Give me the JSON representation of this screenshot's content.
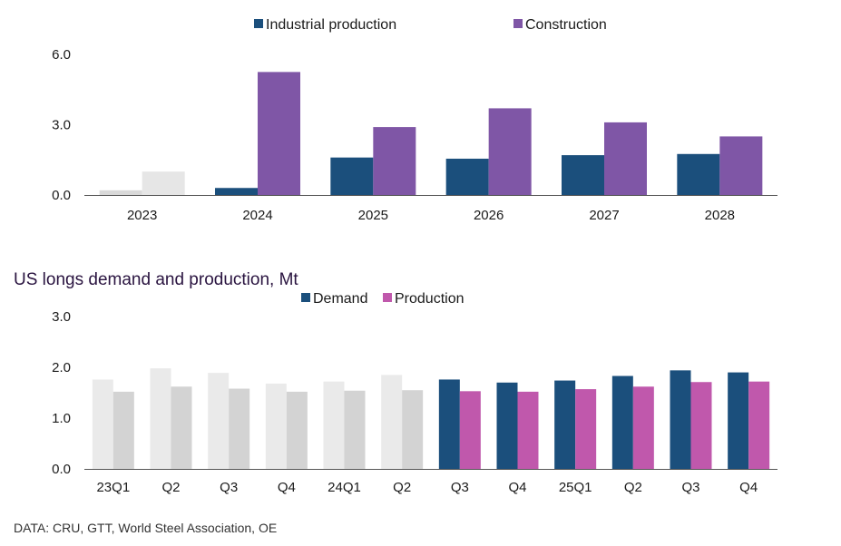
{
  "chart_data": [
    {
      "type": "bar",
      "title": "",
      "categories": [
        "2023",
        "2024",
        "2025",
        "2026",
        "2027",
        "2028"
      ],
      "series": [
        {
          "name": "Industrial production",
          "color": "#1b4f7c",
          "values": [
            0.2,
            0.3,
            1.6,
            1.55,
            1.7,
            1.75
          ]
        },
        {
          "name": "Construction",
          "color": "#7f56a6",
          "values": [
            1.0,
            5.25,
            2.9,
            3.7,
            3.1,
            2.5
          ]
        }
      ],
      "historical_colors": [
        "#d9d9d9",
        "#e6e6e6"
      ],
      "historical_count": 1,
      "yticks": [
        "0.0",
        "3.0",
        "6.0"
      ],
      "ylim": [
        0,
        6
      ],
      "legend": "top"
    },
    {
      "type": "bar",
      "title": "US longs demand and production, Mt",
      "categories": [
        "23Q1",
        "Q2",
        "Q3",
        "Q4",
        "24Q1",
        "Q2",
        "Q3",
        "Q4",
        "25Q1",
        "Q2",
        "Q3",
        "Q4"
      ],
      "series": [
        {
          "name": "Demand",
          "color": "#1b4f7c",
          "values": [
            1.76,
            1.98,
            1.89,
            1.68,
            1.72,
            1.85,
            1.76,
            1.7,
            1.74,
            1.83,
            1.94,
            1.9
          ]
        },
        {
          "name": "Production",
          "color": "#c058ac",
          "values": [
            1.52,
            1.62,
            1.58,
            1.52,
            1.54,
            1.55,
            1.53,
            1.52,
            1.57,
            1.62,
            1.71,
            1.72
          ]
        }
      ],
      "historical_colors": [
        "#eaeaea",
        "#d3d3d3"
      ],
      "historical_count": 6,
      "yticks": [
        "0.0",
        "1.0",
        "2.0",
        "3.0"
      ],
      "ylim": [
        0,
        3
      ],
      "legend": "top"
    }
  ],
  "source": "DATA: CRU, GTT, World Steel Association, OE"
}
